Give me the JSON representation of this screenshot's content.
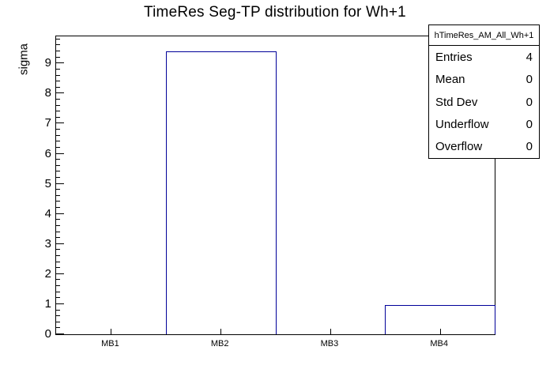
{
  "title": "TimeRes Seg-TP distribution for Wh+1",
  "colors": {
    "bar_line": "#000099",
    "axis": "#000000",
    "background": "#ffffff"
  },
  "stats_box": {
    "name": "hTimeRes_AM_All_Wh+1",
    "rows": [
      {
        "label": "Entries",
        "value": "4"
      },
      {
        "label": "Mean",
        "value": "0"
      },
      {
        "label": "Std Dev",
        "value": "0"
      },
      {
        "label": "Underflow",
        "value": "0"
      },
      {
        "label": "Overflow",
        "value": "0"
      }
    ]
  },
  "chart_data": {
    "type": "bar",
    "title": "TimeRes Seg-TP distribution for Wh+1",
    "categories": [
      "MB1",
      "MB2",
      "MB3",
      "MB4"
    ],
    "values": [
      0,
      9.4,
      0,
      0.98
    ],
    "xlabel": "",
    "ylabel": "sigma",
    "ylim": [
      0,
      9.9
    ],
    "y_major_ticks": [
      0,
      1,
      2,
      3,
      4,
      5,
      6,
      7,
      8,
      9
    ],
    "y_minor_step": 0.2,
    "grid": false,
    "legend": false,
    "bar_style": "outline-only"
  }
}
